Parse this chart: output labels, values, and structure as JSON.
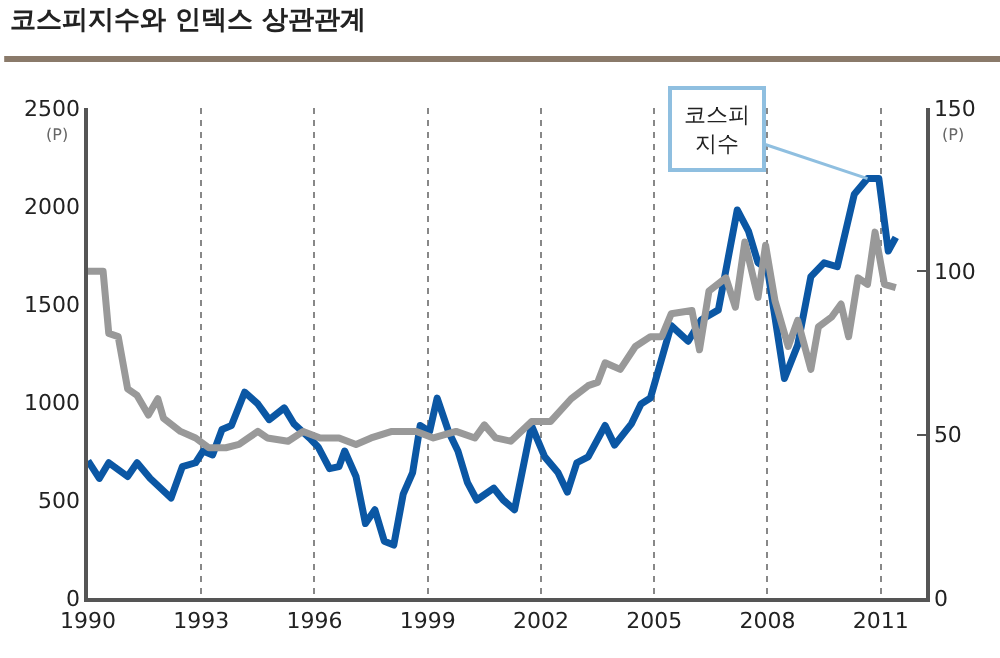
{
  "chart_data": {
    "type": "line",
    "title": "코스피지수와 인덱스 상관관계",
    "ylabel": "(P)",
    "y2label": "(P)",
    "xlim": [
      1990,
      2012.2
    ],
    "xticks": [
      1990,
      1993,
      1996,
      1999,
      2002,
      2005,
      2008,
      2011
    ],
    "ylim": [
      0,
      2500
    ],
    "yticks": [
      0,
      500,
      1000,
      1500,
      2000,
      2500
    ],
    "y2lim": [
      0,
      150
    ],
    "y2ticks": [
      0,
      50,
      100,
      150
    ],
    "grid": "x",
    "legend": false,
    "marker": "none",
    "line_style": "solid",
    "series": [
      {
        "color": "#999999",
        "axis": "y2",
        "x": [
          1990,
          1990.4,
          1990.55,
          1990.8,
          1991.05,
          1991.3,
          1991.6,
          1991.85,
          1992.0,
          1992.45,
          1992.85,
          1993.2,
          1993.65,
          1994.0,
          1994.25,
          1994.5,
          1994.75,
          1995.3,
          1995.7,
          1996.15,
          1996.65,
          1997.1,
          1997.5,
          1998.05,
          1998.7,
          1999.15,
          1999.75,
          2000.25,
          2000.5,
          2000.8,
          2001.2,
          2001.75,
          2002.25,
          2002.8,
          2003.25,
          2003.5,
          2003.7,
          2004.1,
          2004.5,
          2004.9,
          2005.2,
          2005.45,
          2006.0,
          2006.2,
          2006.45,
          2006.9,
          2007.15,
          2007.4,
          2007.75,
          2007.95,
          2008.2,
          2008.55,
          2008.8,
          2009.15,
          2009.35,
          2009.7,
          2009.95,
          2010.15,
          2010.4,
          2010.65,
          2010.85,
          2011.1,
          2011.4
        ],
        "values": [
          100,
          100,
          81,
          80,
          64,
          62,
          56,
          61,
          55,
          51,
          49,
          46,
          46,
          47,
          49,
          51,
          49,
          48,
          51,
          49,
          49,
          47,
          49,
          51,
          51,
          49,
          51,
          49,
          53,
          49,
          48,
          54,
          54,
          61,
          65,
          66,
          72,
          70,
          77,
          80,
          80,
          87,
          88,
          76,
          94,
          98,
          89,
          109,
          92,
          108,
          91,
          77,
          85,
          70,
          83,
          86,
          90,
          80,
          98,
          96,
          112,
          96,
          95
        ]
      },
      {
        "name": "코스피\n지수",
        "color": "#0b57a4",
        "axis": "y",
        "x": [
          1990,
          1990.3,
          1990.55,
          1991.05,
          1991.3,
          1991.65,
          1992.2,
          1992.5,
          1992.85,
          1993.05,
          1993.3,
          1993.55,
          1993.8,
          1994.15,
          1994.5,
          1994.8,
          1995.2,
          1995.45,
          1995.9,
          1996.1,
          1996.4,
          1996.65,
          1996.8,
          1997.1,
          1997.35,
          1997.6,
          1997.85,
          1998.1,
          1998.35,
          1998.6,
          1998.8,
          1999.05,
          1999.25,
          1999.55,
          1999.8,
          2000.05,
          2000.3,
          2000.75,
          2001.0,
          2001.3,
          2001.75,
          2002.1,
          2002.45,
          2002.7,
          2002.95,
          2003.25,
          2003.7,
          2003.95,
          2004.4,
          2004.65,
          2004.9,
          2005.45,
          2005.9,
          2006.25,
          2006.7,
          2007.2,
          2007.5,
          2007.75,
          2008.0,
          2008.45,
          2008.8,
          2009.15,
          2009.5,
          2009.85,
          2010.3,
          2010.65,
          2010.95,
          2011.2,
          2011.4
        ],
        "values": [
          700,
          610,
          690,
          620,
          690,
          610,
          510,
          670,
          690,
          750,
          730,
          860,
          880,
          1050,
          990,
          910,
          970,
          890,
          810,
          770,
          660,
          670,
          750,
          620,
          380,
          450,
          290,
          270,
          530,
          640,
          880,
          850,
          1020,
          850,
          750,
          590,
          500,
          560,
          500,
          450,
          880,
          720,
          640,
          540,
          690,
          720,
          880,
          780,
          890,
          990,
          1020,
          1390,
          1310,
          1420,
          1470,
          1980,
          1870,
          1710,
          1680,
          1120,
          1290,
          1640,
          1710,
          1690,
          2060,
          2140,
          2140,
          1770,
          1840
        ]
      }
    ]
  }
}
